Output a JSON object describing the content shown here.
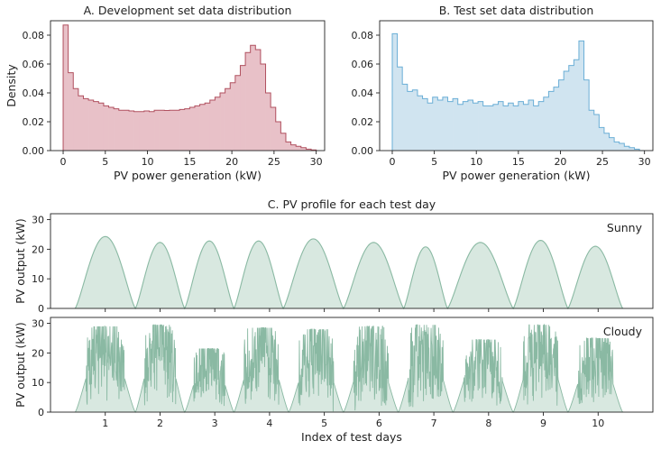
{
  "chart_data": [
    {
      "type": "area",
      "title": "A. Development set data distribution",
      "xlabel": "PV power generation (kW)",
      "ylabel": "Density",
      "xlim": [
        -1.5,
        31.0
      ],
      "ylim": [
        0,
        0.09
      ],
      "xticks": [
        "0",
        "5",
        "10",
        "15",
        "20",
        "25",
        "30"
      ],
      "yticks": [
        "0.00",
        "0.02",
        "0.04",
        "0.06",
        "0.08"
      ],
      "bin_width": 0.6,
      "x": [
        0.0,
        0.6,
        1.2,
        1.8,
        2.4,
        3.0,
        3.6,
        4.2,
        4.8,
        5.4,
        6.0,
        6.6,
        7.2,
        7.8,
        8.4,
        9.0,
        9.6,
        10.2,
        10.8,
        11.4,
        12.0,
        12.6,
        13.2,
        13.8,
        14.4,
        15.0,
        15.6,
        16.2,
        16.8,
        17.4,
        18.0,
        18.6,
        19.2,
        19.8,
        20.4,
        21.0,
        21.6,
        22.2,
        22.8,
        23.4,
        24.0,
        24.6,
        25.2,
        25.8,
        26.4,
        27.0,
        27.6,
        28.2,
        28.8,
        29.4
      ],
      "values": [
        0.087,
        0.054,
        0.043,
        0.038,
        0.036,
        0.035,
        0.034,
        0.033,
        0.031,
        0.03,
        0.029,
        0.028,
        0.028,
        0.0275,
        0.027,
        0.027,
        0.0275,
        0.027,
        0.028,
        0.028,
        0.0278,
        0.028,
        0.028,
        0.0285,
        0.029,
        0.03,
        0.031,
        0.032,
        0.033,
        0.035,
        0.037,
        0.04,
        0.043,
        0.047,
        0.052,
        0.059,
        0.068,
        0.073,
        0.07,
        0.06,
        0.04,
        0.03,
        0.02,
        0.012,
        0.006,
        0.004,
        0.003,
        0.002,
        0.001,
        0.0005
      ],
      "fill_color": "#e8c1c8",
      "line_color": "#b0505f"
    },
    {
      "type": "area",
      "title": "B. Test set data distribution",
      "xlabel": "PV power generation (kW)",
      "ylabel": "",
      "xlim": [
        -1.5,
        31.0
      ],
      "ylim": [
        0,
        0.09
      ],
      "xticks": [
        "0",
        "5",
        "10",
        "15",
        "20",
        "25",
        "30"
      ],
      "yticks": [
        "0.00",
        "0.02",
        "0.04",
        "0.06",
        "0.08"
      ],
      "bin_width": 0.6,
      "x": [
        0.0,
        0.6,
        1.2,
        1.8,
        2.4,
        3.0,
        3.6,
        4.2,
        4.8,
        5.4,
        6.0,
        6.6,
        7.2,
        7.8,
        8.4,
        9.0,
        9.6,
        10.2,
        10.8,
        11.4,
        12.0,
        12.6,
        13.2,
        13.8,
        14.4,
        15.0,
        15.6,
        16.2,
        16.8,
        17.4,
        18.0,
        18.6,
        19.2,
        19.8,
        20.4,
        21.0,
        21.6,
        22.2,
        22.8,
        23.4,
        24.0,
        24.6,
        25.2,
        25.8,
        26.4,
        27.0,
        27.6,
        28.2,
        28.8,
        29.4
      ],
      "values": [
        0.081,
        0.058,
        0.046,
        0.041,
        0.042,
        0.038,
        0.036,
        0.033,
        0.037,
        0.035,
        0.037,
        0.034,
        0.036,
        0.032,
        0.034,
        0.035,
        0.033,
        0.034,
        0.031,
        0.031,
        0.032,
        0.034,
        0.031,
        0.033,
        0.031,
        0.034,
        0.032,
        0.035,
        0.031,
        0.034,
        0.037,
        0.041,
        0.044,
        0.049,
        0.055,
        0.059,
        0.063,
        0.076,
        0.049,
        0.028,
        0.025,
        0.016,
        0.012,
        0.009,
        0.006,
        0.005,
        0.003,
        0.002,
        0.001,
        0.0
      ],
      "fill_color": "#d0e4f0",
      "line_color": "#6aaed6"
    },
    {
      "type": "area",
      "title": "C. PV profile for each test day",
      "panel_label": "Sunny",
      "xlabel": "",
      "ylabel": "PV output (kW)",
      "xlim": [
        0.0,
        11.0
      ],
      "ylim": [
        0,
        32
      ],
      "xticks": [
        "1",
        "2",
        "3",
        "4",
        "5",
        "6",
        "7",
        "8",
        "9",
        "10"
      ],
      "yticks": [
        "0",
        "10",
        "20",
        "30"
      ],
      "days": [
        {
          "start": 0.45,
          "end": 1.55,
          "peak": 24.3
        },
        {
          "start": 1.55,
          "end": 2.45,
          "peak": 22.3
        },
        {
          "start": 2.45,
          "end": 3.35,
          "peak": 22.8
        },
        {
          "start": 3.35,
          "end": 4.25,
          "peak": 22.8
        },
        {
          "start": 4.25,
          "end": 5.35,
          "peak": 23.5
        },
        {
          "start": 5.35,
          "end": 6.45,
          "peak": 22.3
        },
        {
          "start": 6.45,
          "end": 7.25,
          "peak": 20.8
        },
        {
          "start": 7.25,
          "end": 8.45,
          "peak": 22.3
        },
        {
          "start": 8.45,
          "end": 9.45,
          "peak": 23.0
        },
        {
          "start": 9.45,
          "end": 10.45,
          "peak": 21.0
        }
      ],
      "fill_color": "#d8e8e0",
      "line_color": "#8ab9a3"
    },
    {
      "type": "area",
      "panel_label": "Cloudy",
      "xlabel": "Index of test days",
      "ylabel": "PV output (kW)",
      "xlim": [
        0.0,
        11.0
      ],
      "ylim": [
        0,
        32
      ],
      "xticks": [
        "1",
        "2",
        "3",
        "4",
        "5",
        "6",
        "7",
        "8",
        "9",
        "10"
      ],
      "yticks": [
        "0",
        "10",
        "20",
        "30"
      ],
      "days": [
        {
          "start": 0.45,
          "end": 1.55,
          "peak": 25.0,
          "max": 29.0
        },
        {
          "start": 1.55,
          "end": 2.45,
          "peak": 25.0,
          "max": 29.5
        },
        {
          "start": 2.45,
          "end": 3.35,
          "peak": 20.0,
          "max": 21.5
        },
        {
          "start": 3.35,
          "end": 4.35,
          "peak": 24.0,
          "max": 28.5
        },
        {
          "start": 4.35,
          "end": 5.35,
          "peak": 22.0,
          "max": 28.0
        },
        {
          "start": 5.35,
          "end": 6.35,
          "peak": 22.0,
          "max": 29.0
        },
        {
          "start": 6.35,
          "end": 7.35,
          "peak": 24.0,
          "max": 29.5
        },
        {
          "start": 7.35,
          "end": 8.45,
          "peak": 23.0,
          "max": 24.5
        },
        {
          "start": 8.45,
          "end": 9.45,
          "peak": 24.0,
          "max": 29.5
        },
        {
          "start": 9.45,
          "end": 10.45,
          "peak": 21.0,
          "max": 25.0
        }
      ],
      "fill_color": "#d8e8e0",
      "line_color": "#8ab9a3"
    }
  ]
}
